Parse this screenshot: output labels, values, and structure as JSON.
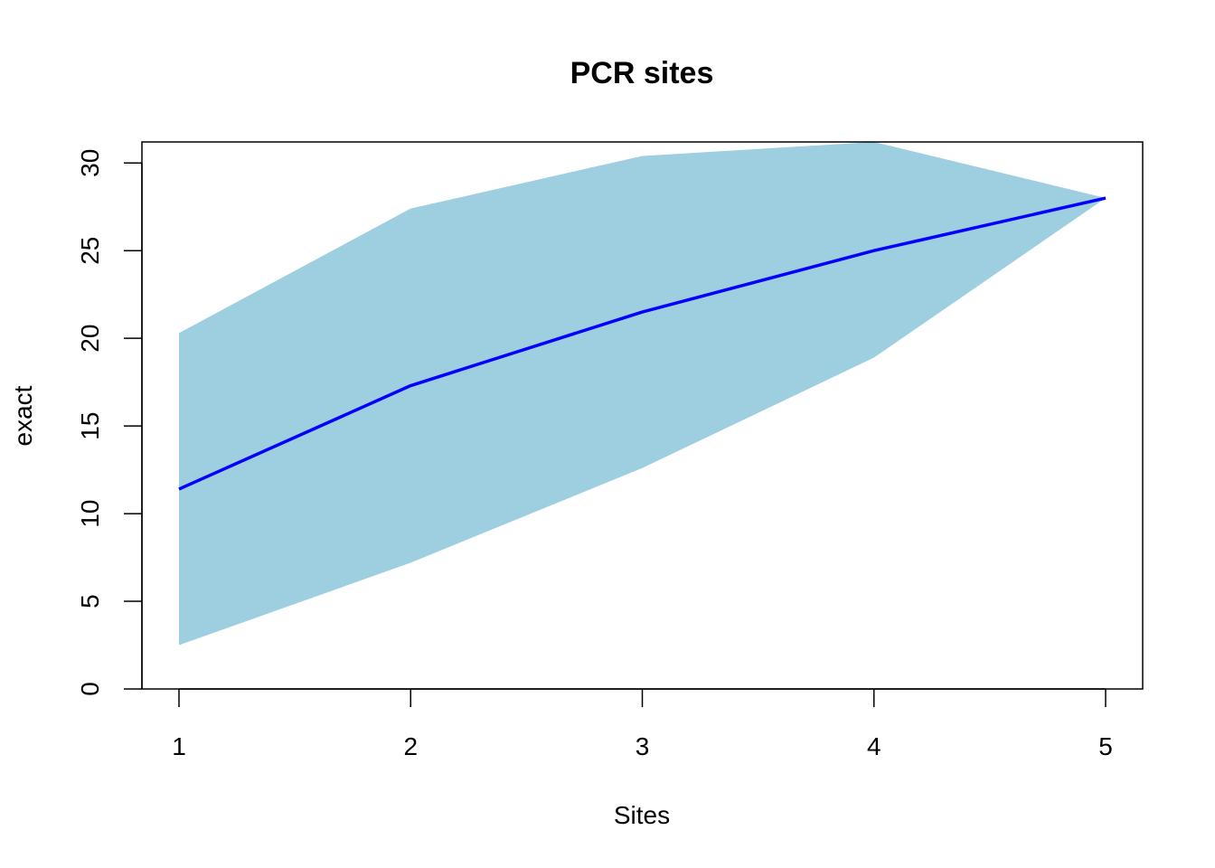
{
  "chart_data": {
    "type": "area",
    "title": "PCR sites",
    "xlabel": "Sites",
    "ylabel": "exact",
    "x": [
      1,
      2,
      3,
      4,
      5
    ],
    "xticks": [
      "1",
      "2",
      "3",
      "4",
      "5"
    ],
    "yticks": [
      "0",
      "5",
      "10",
      "15",
      "20",
      "25",
      "30"
    ],
    "xlim": [
      0.84,
      5.16
    ],
    "ylim": [
      0,
      31.2
    ],
    "grid": false,
    "series": [
      {
        "values": [
          11.4,
          17.3,
          21.5,
          25.0,
          28.0
        ],
        "color": "#0000ff",
        "kind": "line"
      }
    ],
    "band": {
      "lower": [
        2.5,
        7.2,
        12.6,
        18.9,
        28.0
      ],
      "upper": [
        20.3,
        27.4,
        30.4,
        31.2,
        28.0
      ],
      "color": "#9ecfe0"
    }
  }
}
